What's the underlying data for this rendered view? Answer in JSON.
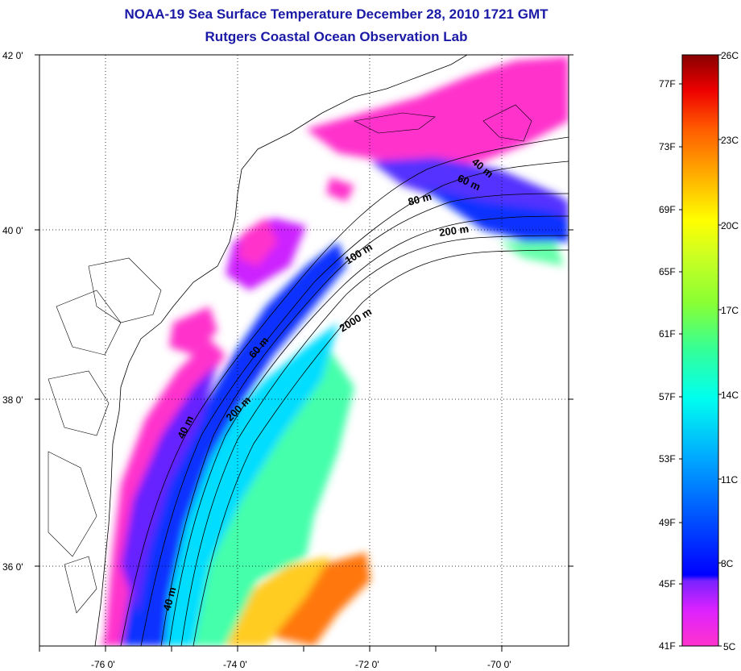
{
  "title": "NOAA-19 Sea Surface Temperature December 28, 2010 1721 GMT",
  "subtitle": "Rutgers Coastal Ocean Observation Lab",
  "map": {
    "lat_labels": [
      "42 0'",
      "40 0'",
      "38 0'",
      "36 0'"
    ],
    "lon_labels": [
      "-76 0'",
      "-74 0'",
      "-72 0'",
      "-70 0'"
    ],
    "grid": "dotted",
    "depth_contour_labels": [
      "40 m",
      "60 m",
      "80 m",
      "200 m",
      "100 m",
      "2000 m",
      "60 m",
      "200 m",
      "40 m",
      "40 m"
    ]
  },
  "colorbar": {
    "fahrenheit_labels": [
      "77F",
      "73F",
      "69F",
      "65F",
      "61F",
      "57F",
      "53F",
      "49F",
      "45F",
      "41F"
    ],
    "celsius_labels": [
      "26C",
      "23C",
      "20C",
      "17C",
      "14C",
      "11C",
      "8C",
      "5C"
    ],
    "colors": [
      "#ff33cc",
      "#cc22ff",
      "#7a22ff",
      "#0000ff",
      "#0066ff",
      "#00ccff",
      "#00ffcc",
      "#66ff44",
      "#ccff22",
      "#ffff00",
      "#ffaa00",
      "#ff5500",
      "#ee0000",
      "#880000"
    ]
  }
}
